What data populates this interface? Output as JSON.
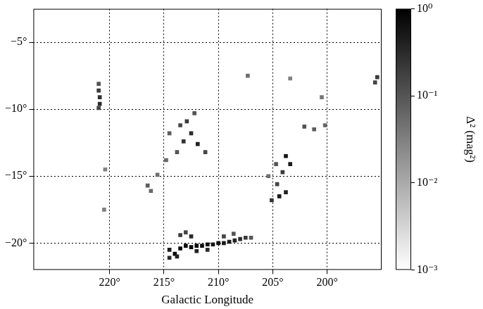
{
  "chart_data": {
    "type": "heatmap",
    "x_label": "Galactic Longitude",
    "xlim": [
      227,
      195
    ],
    "xticks": [
      {
        "value": 220,
        "label": "220°"
      },
      {
        "value": 215,
        "label": "215°"
      },
      {
        "value": 210,
        "label": "210°"
      },
      {
        "value": 205,
        "label": "205°"
      },
      {
        "value": 200,
        "label": "200°"
      }
    ],
    "ylim": [
      -22,
      -2.5
    ],
    "yticks": [
      {
        "value": -5,
        "label": "−5°"
      },
      {
        "value": -10,
        "label": "−10°"
      },
      {
        "value": -15,
        "label": "−15°"
      },
      {
        "value": -20,
        "label": "−20°"
      }
    ],
    "grid": true,
    "cells": [
      [
        221.0,
        -8.1,
        0.1
      ],
      [
        221.0,
        -8.6,
        0.2
      ],
      [
        220.9,
        -9.1,
        0.25
      ],
      [
        220.9,
        -9.6,
        0.3
      ],
      [
        221.0,
        -9.9,
        0.15
      ],
      [
        212.9,
        -10.9,
        0.2
      ],
      [
        212.5,
        -11.8,
        0.3
      ],
      [
        213.2,
        -12.4,
        0.25
      ],
      [
        211.9,
        -12.6,
        0.4
      ],
      [
        211.2,
        -13.2,
        0.15
      ],
      [
        213.8,
        -13.2,
        0.1
      ],
      [
        214.8,
        -13.8,
        0.06
      ],
      [
        214.5,
        -11.8,
        0.08
      ],
      [
        212.2,
        -10.3,
        0.1
      ],
      [
        213.5,
        -11.2,
        0.15
      ],
      [
        216.5,
        -15.7,
        0.08
      ],
      [
        216.2,
        -16.1,
        0.06
      ],
      [
        215.6,
        -14.9,
        0.05
      ],
      [
        203.8,
        -13.5,
        0.6
      ],
      [
        203.4,
        -14.1,
        0.5
      ],
      [
        204.1,
        -14.7,
        0.2
      ],
      [
        204.6,
        -15.6,
        0.15
      ],
      [
        204.4,
        -16.5,
        0.5
      ],
      [
        203.8,
        -16.2,
        0.4
      ],
      [
        205.1,
        -16.8,
        0.25
      ],
      [
        204.7,
        -14.1,
        0.1
      ],
      [
        205.4,
        -15.0,
        0.05
      ],
      [
        202.1,
        -11.3,
        0.1
      ],
      [
        201.2,
        -11.5,
        0.08
      ],
      [
        200.2,
        -11.2,
        0.06
      ],
      [
        214.5,
        -20.5,
        0.5
      ],
      [
        214.0,
        -20.8,
        0.8
      ],
      [
        213.5,
        -20.4,
        1.0
      ],
      [
        213.0,
        -20.2,
        0.9
      ],
      [
        212.5,
        -20.3,
        0.8
      ],
      [
        212.0,
        -20.2,
        0.9
      ],
      [
        211.5,
        -20.2,
        0.7
      ],
      [
        211.0,
        -20.1,
        0.8
      ],
      [
        210.5,
        -20.1,
        0.6
      ],
      [
        210.0,
        -20.0,
        0.6
      ],
      [
        209.5,
        -20.0,
        0.5
      ],
      [
        209.0,
        -19.9,
        0.5
      ],
      [
        208.5,
        -19.8,
        0.4
      ],
      [
        208.0,
        -19.7,
        0.3
      ],
      [
        207.5,
        -19.6,
        0.2
      ],
      [
        207.0,
        -19.6,
        0.1
      ],
      [
        213.5,
        -19.4,
        0.2
      ],
      [
        213.0,
        -19.2,
        0.15
      ],
      [
        212.5,
        -19.5,
        0.3
      ],
      [
        214.5,
        -21.1,
        0.3
      ],
      [
        213.8,
        -21.0,
        0.4
      ],
      [
        209.5,
        -19.5,
        0.15
      ],
      [
        208.6,
        -19.3,
        0.1
      ],
      [
        212.0,
        -20.6,
        0.4
      ],
      [
        211.0,
        -20.5,
        0.3
      ],
      [
        195.4,
        -7.6,
        0.2
      ],
      [
        195.6,
        -8.0,
        0.15
      ],
      [
        207.3,
        -7.5,
        0.05
      ],
      [
        200.5,
        -9.1,
        0.04
      ],
      [
        203.4,
        -7.7,
        0.03
      ],
      [
        220.4,
        -14.5,
        0.03
      ],
      [
        220.5,
        -17.5,
        0.03
      ]
    ],
    "colorbar": {
      "label": "Δ² (mag²)",
      "log": true,
      "range": [
        0.001,
        1
      ],
      "ticks": [
        {
          "value": 1,
          "label": "10⁰"
        },
        {
          "value": 0.1,
          "label": "10⁻¹"
        },
        {
          "value": 0.01,
          "label": "10⁻²"
        },
        {
          "value": 0.001,
          "label": "10⁻³"
        }
      ]
    }
  }
}
